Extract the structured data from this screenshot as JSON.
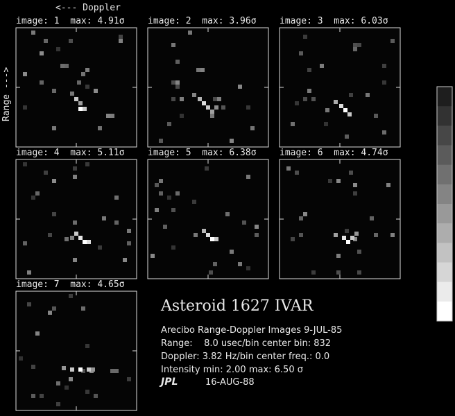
{
  "header": {
    "doppler_label": "<--- Doppler",
    "range_label": "Range --->"
  },
  "panels": [
    {
      "label": "image: 1  max: 4.91σ"
    },
    {
      "label": "image: 2  max: 3.96σ"
    },
    {
      "label": "image: 3  max: 6.03σ"
    },
    {
      "label": "image: 4  max: 5.11σ"
    },
    {
      "label": "image: 5  max: 6.38σ"
    },
    {
      "label": "image: 6  max: 4.74σ"
    },
    {
      "label": "image: 7  max: 4.65σ"
    }
  ],
  "caption": {
    "title": "Asteroid 1627 IVAR",
    "lines": [
      "Arecibo Range-Doppler Images 9-JUL-85",
      "Range:    8.0 usec/bin center bin: 832",
      "Doppler: 3.82 Hz/bin center freq.: 0.0",
      "Intensity min: 2.00 max: 6.50 σ"
    ]
  },
  "footer": {
    "logo": "JPL",
    "date": "16-AUG-88"
  }
}
